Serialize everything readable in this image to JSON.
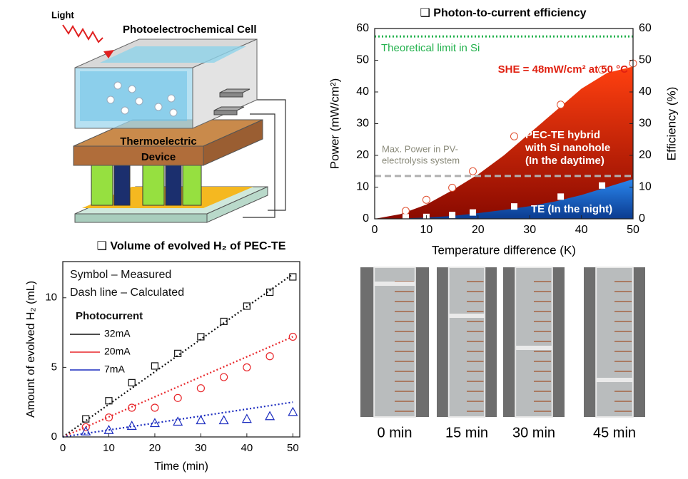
{
  "diagram": {
    "light": "Light",
    "cell_label": "Photoelectrochemical Cell",
    "device_label": [
      "Thermoelectric",
      "Device"
    ]
  },
  "chart_data": [
    {
      "type": "area",
      "title": "❑ Photon-to-current efficiency",
      "xlabel": "Temperature difference (K)",
      "ylabel": "Power (mW/cm²)",
      "y2label": "Efficiency (%)",
      "xlim": [
        0,
        50
      ],
      "xticks": [
        0,
        10,
        20,
        30,
        40,
        50
      ],
      "ylim": [
        0,
        60
      ],
      "yticks": [
        0,
        10,
        20,
        30,
        40,
        50,
        60
      ],
      "y2lim": [
        0,
        60
      ],
      "y2ticks": [
        0,
        10,
        20,
        30,
        40,
        50,
        60
      ],
      "series": [
        {
          "type": "area",
          "color": "#e8290b",
          "x": [
            0,
            5,
            10,
            15,
            20,
            25,
            30,
            35,
            40,
            45,
            50
          ],
          "values": [
            0,
            1.5,
            4.5,
            9,
            14,
            20,
            27,
            34,
            41,
            46,
            48
          ]
        },
        {
          "type": "area",
          "color": "#1565c8",
          "x": [
            0,
            5,
            10,
            15,
            20,
            25,
            30,
            35,
            40,
            45,
            50
          ],
          "values": [
            0,
            0.1,
            0.4,
            0.9,
            1.8,
            2.8,
            4,
            5.5,
            7.5,
            10,
            12.5
          ]
        },
        {
          "type": "scatter",
          "marker": "circle",
          "color": "#ffffff",
          "x": [
            6,
            10,
            15,
            19,
            27,
            36,
            44,
            50
          ],
          "values": [
            2.5,
            6,
            9.8,
            15,
            26,
            36,
            47,
            49
          ]
        },
        {
          "type": "scatter",
          "marker": "square",
          "color": "#ffffff",
          "x": [
            6,
            10,
            15,
            19,
            27,
            36,
            44
          ],
          "values": [
            0.5,
            0.6,
            1.2,
            2,
            3.9,
            7,
            10.5
          ]
        }
      ],
      "reference_lines": [
        {
          "value": 57.5,
          "color": "#22b14c",
          "style": "dotted"
        },
        {
          "value": 13.5,
          "color": "#b0b0b0",
          "style": "dashed"
        }
      ],
      "annotations": {
        "limit": "Theoretical limit in Si",
        "she": "SHE = 48mW/cm² at 50 °C",
        "pv": [
          "Max. Power in PV-",
          "electrolysis system"
        ],
        "hybrid": [
          "PEC-TE hybrid",
          "with Si nanohole",
          "(In the daytime)"
        ],
        "te": "TE (In the night)"
      }
    },
    {
      "type": "scatter",
      "title": "❑ Volume of evolved H₂ of PEC-TE",
      "xlabel": "Time (min)",
      "ylabel": "Amount of evolved H₂ (mL)",
      "xlim": [
        0,
        51.5
      ],
      "xticks": [
        0,
        10,
        20,
        30,
        40,
        50
      ],
      "ylim": [
        0,
        12.6
      ],
      "yticks": [
        0,
        5,
        10
      ],
      "series": [
        {
          "type": "line",
          "name": "32mA",
          "color": "#111111",
          "x": [
            0,
            50
          ],
          "values": [
            0,
            11.7
          ]
        },
        {
          "type": "line",
          "name": "20mA",
          "color": "#e8262a",
          "x": [
            0,
            50
          ],
          "values": [
            0,
            7.2
          ]
        },
        {
          "type": "line",
          "name": "7mA",
          "color": "#1a2bbf",
          "x": [
            0,
            50
          ],
          "values": [
            0,
            2.5
          ]
        },
        {
          "type": "scatter",
          "marker": "square",
          "color": "#111111",
          "x": [
            5,
            10,
            15,
            20,
            25,
            30,
            35,
            40,
            45,
            50
          ],
          "values": [
            1.3,
            2.6,
            3.9,
            5.1,
            6,
            7.2,
            8.3,
            9.4,
            10.4,
            11.5
          ]
        },
        {
          "type": "scatter",
          "marker": "circle",
          "color": "#e8262a",
          "x": [
            5,
            10,
            15,
            20,
            25,
            30,
            35,
            40,
            45,
            50
          ],
          "values": [
            0.7,
            1.4,
            2.1,
            2.1,
            2.8,
            3.5,
            4.3,
            5,
            5.8,
            7.2
          ]
        },
        {
          "type": "scatter",
          "marker": "triangle",
          "color": "#1a2bbf",
          "x": [
            5,
            10,
            15,
            20,
            25,
            30,
            35,
            40,
            45,
            50
          ],
          "values": [
            0.4,
            0.5,
            0.8,
            1,
            1.1,
            1.2,
            1.2,
            1.3,
            1.5,
            1.8
          ]
        }
      ],
      "annotations": {
        "measured": "Symbol – Measured",
        "calculated": "Dash line – Calculated",
        "photocurrent": "Photocurrent"
      }
    }
  ],
  "photos": {
    "labels": [
      "0 min",
      "15 min",
      "30 min",
      "45 min"
    ]
  }
}
